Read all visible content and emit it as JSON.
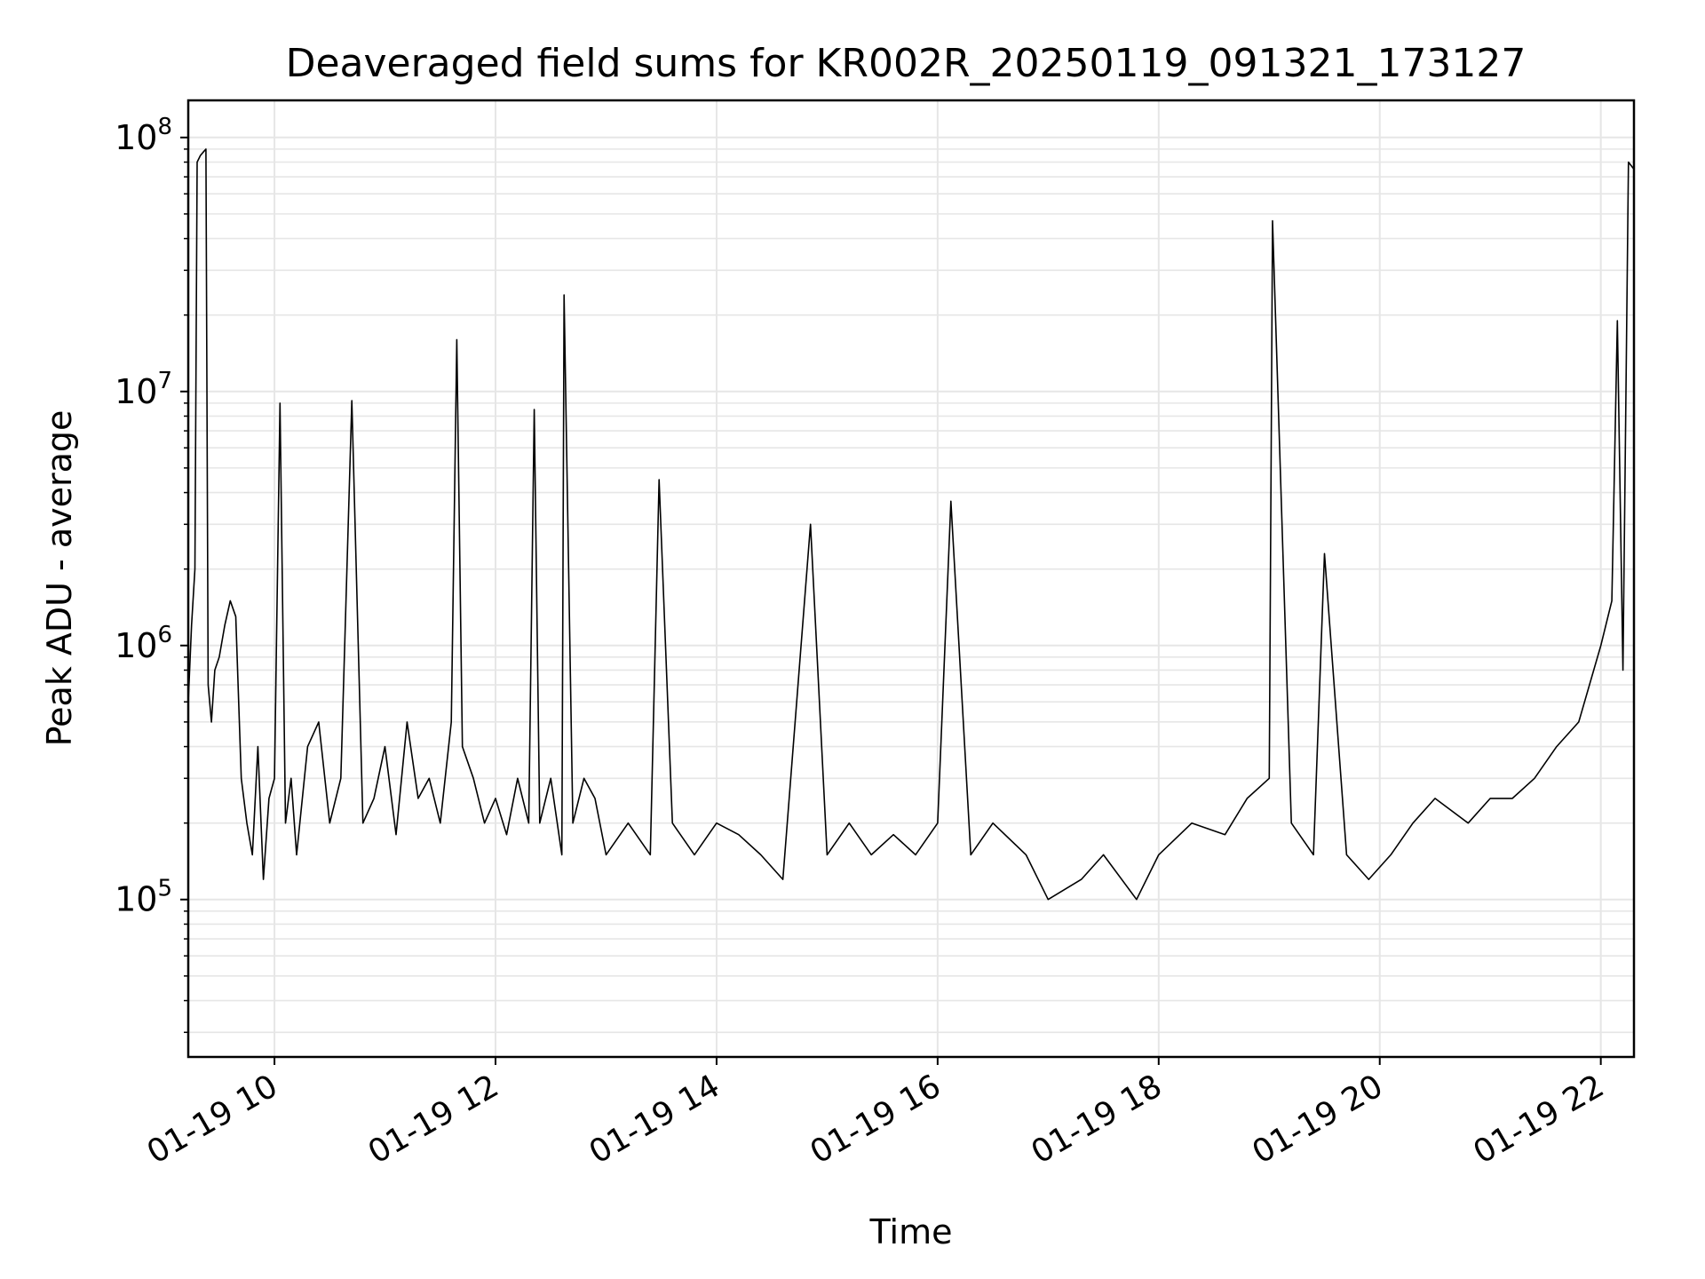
{
  "chart_data": {
    "type": "line",
    "title": "Deaveraged field sums for KR002R_20250119_091321_173127",
    "xlabel": "Time",
    "ylabel": "Peak ADU - average",
    "yscale": "log",
    "ylim": [
      24000,
      140000000
    ],
    "xlim_hours": [
      9.22,
      22.3
    ],
    "grid": true,
    "legend": "none",
    "x_ticks": [
      {
        "hour": 10,
        "label": "01-19 10"
      },
      {
        "hour": 12,
        "label": "01-19 12"
      },
      {
        "hour": 14,
        "label": "01-19 14"
      },
      {
        "hour": 16,
        "label": "01-19 16"
      },
      {
        "hour": 18,
        "label": "01-19 18"
      },
      {
        "hour": 20,
        "label": "01-19 20"
      },
      {
        "hour": 22,
        "label": "01-19 22"
      }
    ],
    "y_ticks": [
      {
        "value": 100000,
        "base": "10",
        "exp": "5"
      },
      {
        "value": 1000000,
        "base": "10",
        "exp": "6"
      },
      {
        "value": 10000000,
        "base": "10",
        "exp": "7"
      },
      {
        "value": 100000000,
        "base": "10",
        "exp": "8"
      }
    ],
    "series": [
      {
        "name": "deaveraged field sum",
        "color": "#000000",
        "x": [
          9.22,
          9.25,
          9.28,
          9.3,
          9.33,
          9.36,
          9.38,
          9.4,
          9.43,
          9.46,
          9.5,
          9.55,
          9.6,
          9.65,
          9.7,
          9.75,
          9.8,
          9.85,
          9.9,
          9.95,
          10.0,
          10.05,
          10.1,
          10.15,
          10.2,
          10.3,
          10.4,
          10.5,
          10.6,
          10.7,
          10.8,
          10.9,
          11.0,
          11.1,
          11.2,
          11.3,
          11.4,
          11.5,
          11.6,
          11.65,
          11.7,
          11.8,
          11.9,
          12.0,
          12.1,
          12.2,
          12.3,
          12.35,
          12.4,
          12.5,
          12.6,
          12.62,
          12.7,
          12.8,
          12.9,
          13.0,
          13.2,
          13.4,
          13.48,
          13.6,
          13.8,
          14.0,
          14.2,
          14.4,
          14.6,
          14.85,
          15.0,
          15.2,
          15.4,
          15.6,
          15.8,
          16.0,
          16.12,
          16.3,
          16.5,
          16.8,
          17.0,
          17.3,
          17.5,
          17.8,
          18.0,
          18.3,
          18.6,
          18.8,
          19.0,
          19.03,
          19.2,
          19.4,
          19.5,
          19.7,
          19.9,
          20.1,
          20.3,
          20.5,
          20.8,
          21.0,
          21.2,
          21.4,
          21.6,
          21.8,
          22.0,
          22.1,
          22.15,
          22.2,
          22.25,
          22.3
        ],
        "values": [
          600000,
          1200000,
          2000000,
          80000000,
          85000000,
          88000000,
          90000000,
          700000,
          500000,
          800000,
          900000,
          1200000,
          1500000,
          1300000,
          300000,
          200000,
          150000,
          400000,
          120000,
          250000,
          300000,
          9000000,
          200000,
          300000,
          150000,
          400000,
          500000,
          200000,
          300000,
          9200000,
          200000,
          250000,
          400000,
          180000,
          500000,
          250000,
          300000,
          200000,
          500000,
          16000000,
          400000,
          300000,
          200000,
          250000,
          180000,
          300000,
          200000,
          8500000,
          200000,
          300000,
          150000,
          24000000,
          200000,
          300000,
          250000,
          150000,
          200000,
          150000,
          4500000,
          200000,
          150000,
          200000,
          180000,
          150000,
          120000,
          3000000,
          150000,
          200000,
          150000,
          180000,
          150000,
          200000,
          3700000,
          150000,
          200000,
          150000,
          100000,
          120000,
          150000,
          100000,
          150000,
          200000,
          180000,
          250000,
          300000,
          47000000,
          200000,
          150000,
          2300000,
          150000,
          120000,
          150000,
          200000,
          250000,
          200000,
          250000,
          250000,
          300000,
          400000,
          500000,
          1000000,
          1500000,
          19000000,
          800000,
          80000000,
          75000000
        ]
      }
    ]
  }
}
